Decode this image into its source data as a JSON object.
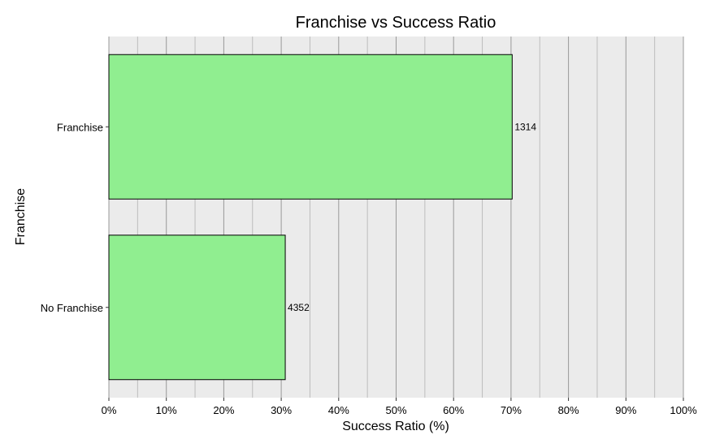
{
  "chart_data": {
    "type": "bar",
    "orientation": "horizontal",
    "title": "Franchise vs Success Ratio",
    "xlabel": "Success Ratio (%)",
    "ylabel": "Franchise",
    "categories": [
      "No Franchise",
      "Franchise"
    ],
    "values": [
      30.7,
      70.2
    ],
    "data_labels": [
      "4352",
      "1314"
    ],
    "xlim": [
      0,
      100
    ],
    "x_ticks": [
      0,
      10,
      20,
      30,
      40,
      50,
      60,
      70,
      80,
      90,
      100
    ],
    "x_tick_labels": [
      "0%",
      "10%",
      "20%",
      "30%",
      "40%",
      "50%",
      "60%",
      "70%",
      "80%",
      "90%",
      "100%"
    ],
    "grid": true,
    "legend": "none",
    "colors": {
      "bar_fill": "#90EE90",
      "bar_stroke": "#000000",
      "panel_background": "#EBEBEB",
      "major_grid": "#999999",
      "minor_grid": "#BDBDBD"
    }
  }
}
